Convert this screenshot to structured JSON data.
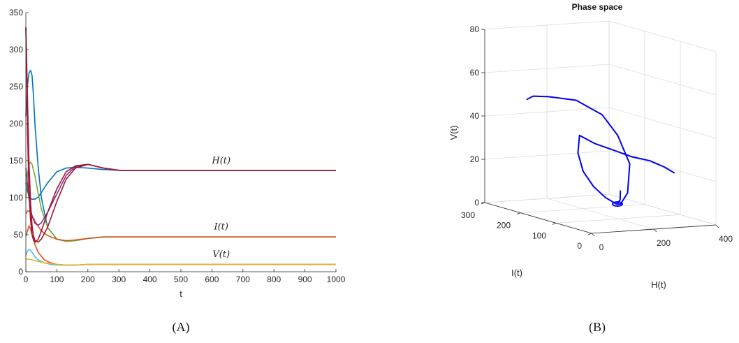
{
  "chart_data": [
    {
      "type": "line",
      "xlabel": "t",
      "ylabel": "",
      "xlim": [
        0,
        1000
      ],
      "ylim": [
        0,
        350
      ],
      "xticks": [
        0,
        100,
        200,
        300,
        400,
        500,
        600,
        700,
        800,
        900,
        1000
      ],
      "yticks": [
        0,
        50,
        100,
        150,
        200,
        250,
        300,
        350
      ],
      "grid": false,
      "caption": "(A)",
      "annotations": [
        {
          "text": "H(t)",
          "x": 630,
          "y": 146
        },
        {
          "text": "I(t)",
          "x": 630,
          "y": 57
        },
        {
          "text": "V(t)",
          "x": 630,
          "y": 20
        }
      ],
      "series": [
        {
          "color": "#0072BD",
          "x": [
            0,
            5,
            10,
            15,
            20,
            30,
            40,
            50,
            70,
            100,
            130,
            160,
            200,
            250,
            300,
            400,
            500,
            700,
            1000
          ],
          "y": [
            120,
            110,
            102,
            99,
            98,
            98,
            101,
            107,
            120,
            135,
            140,
            141,
            140,
            138,
            137,
            137,
            137,
            137,
            137
          ]
        },
        {
          "color": "#0072BD",
          "x": [
            0,
            5,
            10,
            15,
            20,
            25,
            30,
            40,
            50,
            70,
            100,
            130,
            160,
            200,
            250,
            300,
            400,
            700,
            1000
          ],
          "y": [
            210,
            250,
            268,
            272,
            265,
            235,
            195,
            140,
            100,
            60,
            44,
            41,
            42,
            45,
            47,
            47,
            47,
            47,
            47
          ]
        },
        {
          "color": "#77AC30",
          "x": [
            0,
            5,
            10,
            15,
            20,
            30,
            40,
            50,
            70,
            100,
            130,
            160,
            200,
            250,
            300,
            700,
            1000
          ],
          "y": [
            100,
            130,
            145,
            148,
            145,
            128,
            105,
            85,
            60,
            44,
            41,
            42,
            45,
            47,
            47,
            47,
            47
          ]
        },
        {
          "color": "#D95319",
          "x": [
            0,
            5,
            10,
            15,
            20,
            30,
            40,
            50,
            70,
            100,
            130,
            160,
            200,
            250,
            300,
            400,
            700,
            1000
          ],
          "y": [
            78,
            82,
            82,
            80,
            76,
            68,
            61,
            55,
            49,
            44,
            42,
            43,
            45,
            47,
            47,
            47,
            47,
            47
          ]
        },
        {
          "color": "#D95319",
          "x": [
            0,
            5,
            10,
            15,
            20,
            30,
            40,
            60,
            80,
            100,
            130,
            160,
            200,
            300,
            500,
            1000
          ],
          "y": [
            48,
            55,
            62,
            58,
            50,
            36,
            26,
            16,
            12,
            10,
            9,
            9,
            10,
            10,
            10,
            10
          ]
        },
        {
          "color": "#7E2F8E",
          "x": [
            0,
            5,
            10,
            15,
            20,
            30,
            40,
            50,
            70,
            100,
            130,
            160,
            200,
            250,
            300,
            400,
            700,
            1000
          ],
          "y": [
            140,
            120,
            100,
            85,
            75,
            65,
            63,
            66,
            80,
            105,
            130,
            142,
            145,
            140,
            137,
            137,
            137,
            137
          ]
        },
        {
          "color": "#A2142F",
          "x": [
            0,
            3,
            6,
            10,
            15,
            20,
            25,
            30,
            40,
            50,
            70,
            100,
            130,
            160,
            200,
            250,
            300,
            400,
            700,
            1000
          ],
          "y": [
            330,
            260,
            180,
            110,
            70,
            50,
            42,
            40,
            44,
            55,
            80,
            112,
            135,
            143,
            145,
            140,
            137,
            137,
            137,
            137
          ]
        },
        {
          "color": "#A2142F",
          "x": [
            0,
            3,
            6,
            10,
            15,
            20,
            25,
            30,
            40,
            50,
            70,
            100,
            130,
            160,
            200,
            250,
            300,
            400,
            1000
          ],
          "y": [
            330,
            280,
            220,
            150,
            95,
            62,
            48,
            42,
            40,
            44,
            60,
            95,
            125,
            140,
            145,
            140,
            137,
            137,
            137
          ]
        },
        {
          "color": "#4DBEEE",
          "x": [
            0,
            5,
            10,
            15,
            20,
            30,
            40,
            60,
            80,
            100,
            130,
            160,
            200,
            300,
            500,
            1000
          ],
          "y": [
            22,
            28,
            30,
            29,
            26,
            20,
            16,
            12,
            10,
            9,
            9,
            9,
            10,
            10,
            10,
            10
          ]
        },
        {
          "color": "#EDB120",
          "x": [
            0,
            5,
            10,
            20,
            30,
            40,
            60,
            80,
            100,
            130,
            160,
            200,
            300,
            500,
            1000
          ],
          "y": [
            17,
            17,
            17,
            16,
            15,
            14,
            12,
            11,
            10,
            9,
            9,
            10,
            10,
            10,
            10
          ]
        }
      ]
    },
    {
      "type": "line3d",
      "title": "Phase space",
      "xlabel": "H(t)",
      "ylabel": "I(t)",
      "zlabel": "V(t)",
      "xlim": [
        0,
        400
      ],
      "ylim": [
        0,
        300
      ],
      "zlim": [
        0,
        80
      ],
      "xticks": [
        0,
        200,
        400
      ],
      "yticks": [
        0,
        100,
        200,
        300
      ],
      "zticks": [
        0,
        20,
        40,
        60,
        80
      ],
      "grid": true,
      "caption": "(B)",
      "color": "#0000EE",
      "trajectories": [
        {
          "H": [
            100,
            110,
            125,
            145,
            160,
            170,
            180,
            165,
            145,
            135,
            137
          ],
          "I": [
            270,
            260,
            230,
            170,
            110,
            75,
            50,
            43,
            45,
            47,
            47
          ],
          "V": [
            48,
            50,
            51,
            52,
            48,
            40,
            28,
            15,
            10,
            10,
            10
          ]
        },
        {
          "H": [
            330,
            300,
            260,
            210,
            165,
            135,
            110,
            105,
            108,
            115,
            125,
            135,
            137
          ],
          "I": [
            55,
            58,
            63,
            70,
            90,
            110,
            130,
            130,
            118,
            95,
            70,
            50,
            47
          ],
          "V": [
            22,
            25,
            28,
            30,
            33,
            35,
            38,
            30,
            22,
            16,
            12,
            10,
            10
          ]
        },
        {
          "H": [
            150,
            146,
            142,
            138,
            136,
            137
          ],
          "I": [
            50,
            47,
            44,
            45,
            47,
            47
          ],
          "V": [
            16,
            14,
            12,
            11,
            10,
            10
          ]
        }
      ]
    }
  ]
}
